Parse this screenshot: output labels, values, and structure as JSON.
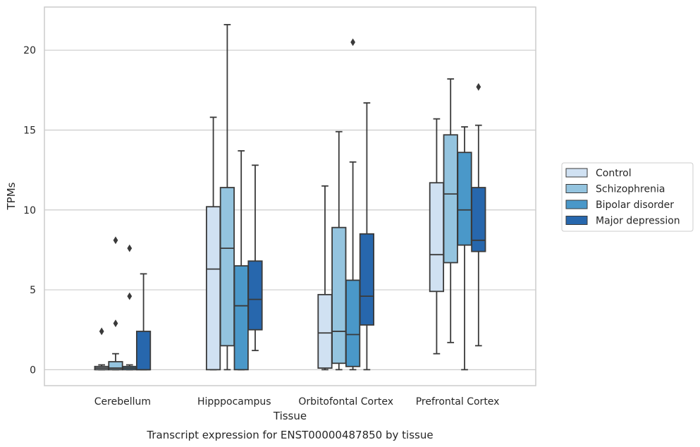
{
  "caption": "Transcript expression for ENST00000487850 by tissue",
  "chart_data": {
    "type": "box",
    "xlabel": "Tissue",
    "ylabel": "TPMs",
    "ylim": [
      -1.0,
      22.7
    ],
    "yticks": [
      0,
      5,
      10,
      15,
      20
    ],
    "grid": "horizontal",
    "legend_position": "right",
    "categories": [
      "Cerebellum",
      "Hipppocampus",
      "Orbitofontal Cortex",
      "Prefrontal Cortex"
    ],
    "series": [
      {
        "name": "Control",
        "color": "#d0e1f2",
        "boxes": [
          {
            "whislo": 0.0,
            "q1": 0.0,
            "med": 0.1,
            "q3": 0.2,
            "whishi": 0.3,
            "fliers": [
              2.4
            ]
          },
          {
            "whislo": 0.0,
            "q1": 0.0,
            "med": 6.3,
            "q3": 10.2,
            "whishi": 15.8,
            "fliers": []
          },
          {
            "whislo": 0.0,
            "q1": 0.1,
            "med": 2.3,
            "q3": 4.7,
            "whishi": 11.5,
            "fliers": []
          },
          {
            "whislo": 1.0,
            "q1": 4.9,
            "med": 7.2,
            "q3": 11.7,
            "whishi": 15.7,
            "fliers": []
          }
        ]
      },
      {
        "name": "Schizophrenia",
        "color": "#94c4df",
        "boxes": [
          {
            "whislo": 0.0,
            "q1": 0.0,
            "med": 0.1,
            "q3": 0.5,
            "whishi": 1.0,
            "fliers": [
              2.9,
              8.1
            ]
          },
          {
            "whislo": 0.0,
            "q1": 1.5,
            "med": 7.6,
            "q3": 11.4,
            "whishi": 21.6,
            "fliers": []
          },
          {
            "whislo": 0.0,
            "q1": 0.4,
            "med": 2.4,
            "q3": 8.9,
            "whishi": 14.9,
            "fliers": []
          },
          {
            "whislo": 1.7,
            "q1": 6.7,
            "med": 11.0,
            "q3": 14.7,
            "whishi": 18.2,
            "fliers": []
          }
        ]
      },
      {
        "name": "Bipolar disorder",
        "color": "#4a98c9",
        "boxes": [
          {
            "whislo": 0.0,
            "q1": 0.0,
            "med": 0.1,
            "q3": 0.2,
            "whishi": 0.3,
            "fliers": [
              4.6,
              7.6
            ]
          },
          {
            "whislo": 0.0,
            "q1": 0.0,
            "med": 4.0,
            "q3": 6.5,
            "whishi": 13.7,
            "fliers": []
          },
          {
            "whislo": 0.0,
            "q1": 0.2,
            "med": 2.2,
            "q3": 5.6,
            "whishi": 13.0,
            "fliers": [
              20.5
            ]
          },
          {
            "whislo": 0.0,
            "q1": 7.8,
            "med": 10.0,
            "q3": 13.6,
            "whishi": 15.2,
            "fliers": []
          }
        ]
      },
      {
        "name": "Major depression",
        "color": "#2767ad",
        "boxes": [
          {
            "whislo": 0.0,
            "q1": 0.0,
            "med": 0.0,
            "q3": 2.4,
            "whishi": 6.0,
            "fliers": []
          },
          {
            "whislo": 1.2,
            "q1": 2.5,
            "med": 4.4,
            "q3": 6.8,
            "whishi": 12.8,
            "fliers": []
          },
          {
            "whislo": 0.0,
            "q1": 2.8,
            "med": 4.6,
            "q3": 8.5,
            "whishi": 16.7,
            "fliers": []
          },
          {
            "whislo": 1.5,
            "q1": 7.4,
            "med": 8.1,
            "q3": 11.4,
            "whishi": 15.3,
            "fliers": [
              17.7
            ]
          }
        ]
      }
    ]
  },
  "colors": {
    "edge": "#3a3a3a",
    "grid": "#cccccc",
    "frame": "#cccccc"
  }
}
